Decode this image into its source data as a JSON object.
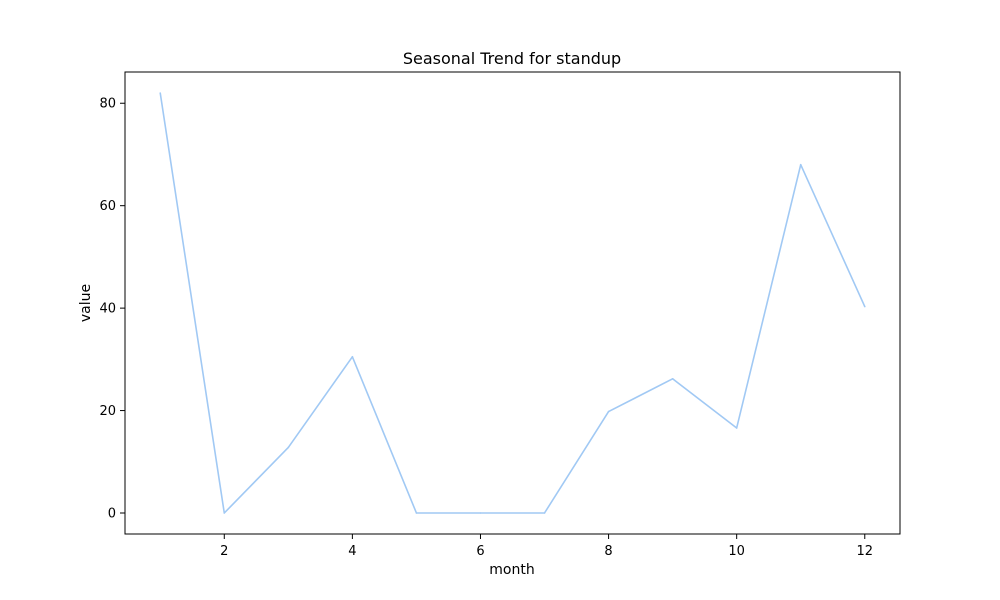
{
  "chart_data": {
    "type": "line",
    "title": "Seasonal Trend for standup",
    "xlabel": "month",
    "ylabel": "value",
    "x": [
      1,
      2,
      3,
      4,
      5,
      6,
      7,
      8,
      9,
      10,
      11,
      12
    ],
    "series": [
      {
        "values": [
          82.0,
          0.0,
          12.8,
          30.5,
          0.0,
          0.0,
          0.0,
          19.8,
          26.2,
          16.6,
          68.0,
          40.3
        ],
        "color": "#a1c9f4"
      }
    ],
    "xlim": [
      0.45,
      12.55
    ],
    "ylim": [
      -4.1,
      86.1
    ],
    "xticks": [
      2,
      4,
      6,
      8,
      10,
      12
    ],
    "yticks": [
      0,
      20,
      40,
      60,
      80
    ],
    "grid": false,
    "legend": "none"
  }
}
